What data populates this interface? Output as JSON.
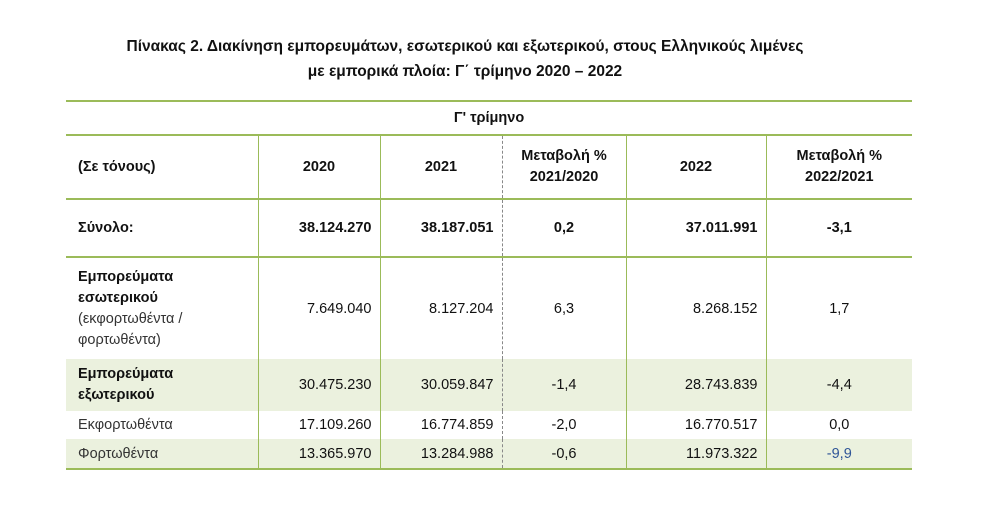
{
  "title": {
    "line1": "Πίνακας 2. Διακίνηση εμπορευμάτων, εσωτερικού και εξωτερικού, στους Ελληνικούς λιμένες",
    "line2": "με εμπορικά πλοία: Γ΄ τρίμηνο 2020 – 2022"
  },
  "table": {
    "period_header": "Γ' τρίμηνο",
    "headers": {
      "units": "(Σε τόνους)",
      "y2020": "2020",
      "y2021": "2021",
      "chg1_line1": "Μεταβολή %",
      "chg1_line2": "2021/2020",
      "y2022": "2022",
      "chg2_line1": "Μεταβολή %",
      "chg2_line2": "2022/2021"
    },
    "rows": {
      "total": {
        "label": "Σύνολο:",
        "v2020": "38.124.270",
        "v2021": "38.187.051",
        "c1": "0,2",
        "v2022": "37.011.991",
        "c2": "-3,1"
      },
      "domestic": {
        "label_line1": "Εμπορεύματα",
        "label_line2": "εσωτερικού",
        "label_line3": "(εκφορτωθέντα /",
        "label_line4": "φορτωθέντα)",
        "v2020": "7.649.040",
        "v2021": "8.127.204",
        "c1": "6,3",
        "v2022": "8.268.152",
        "c2": "1,7"
      },
      "foreign": {
        "label_line1": "Εμπορεύματα",
        "label_line2": "εξωτερικού",
        "v2020": "30.475.230",
        "v2021": "30.059.847",
        "c1": "-1,4",
        "v2022": "28.743.839",
        "c2": "-4,4"
      },
      "unloaded": {
        "label": "Εκφορτωθέντα",
        "v2020": "17.109.260",
        "v2021": "16.774.859",
        "c1": "-2,0",
        "v2022": "16.770.517",
        "c2": "0,0"
      },
      "loaded": {
        "label": "Φορτωθέντα",
        "v2020": "13.365.970",
        "v2021": "13.284.988",
        "c1": "-0,6",
        "v2022": "11.973.322",
        "c2": "-9,9"
      }
    }
  }
}
